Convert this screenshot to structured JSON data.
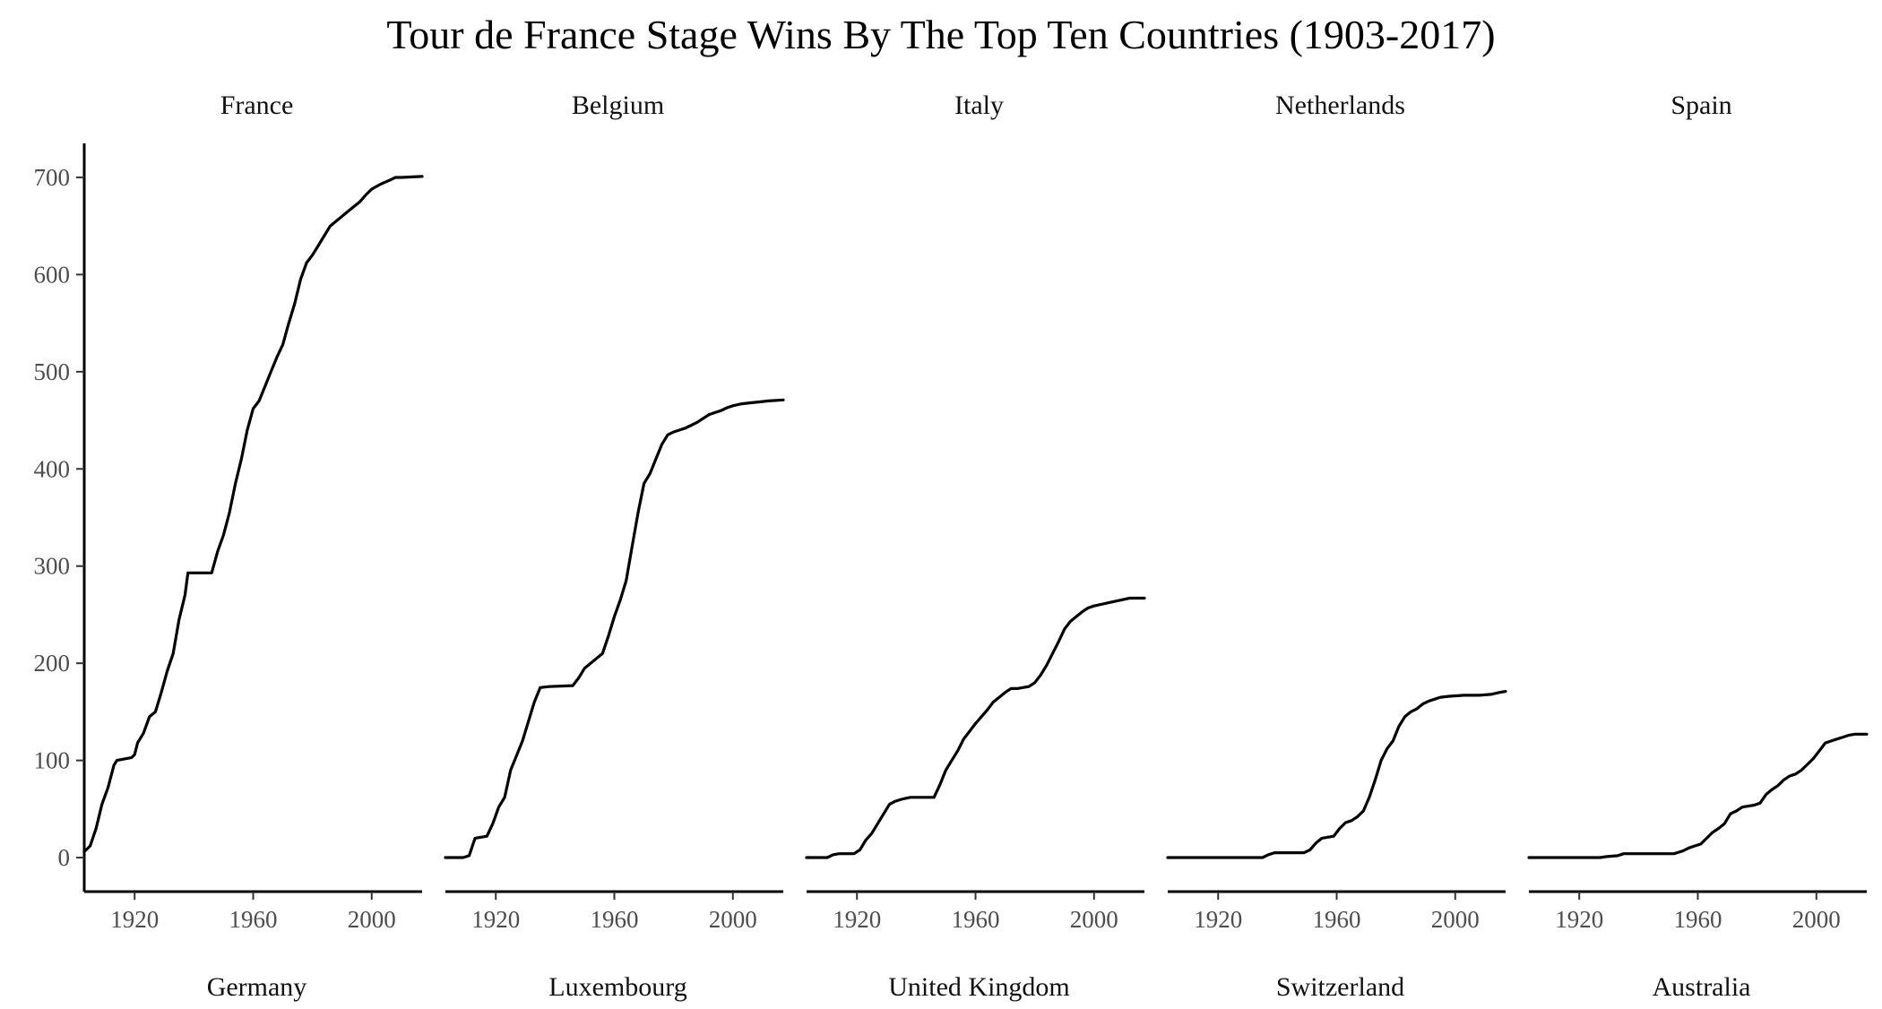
{
  "chart_data": {
    "type": "line",
    "title": "Tour de France Stage Wins By The Top Ten Countries (1903-2017)",
    "xlabel": "",
    "ylabel": "",
    "xlim": [
      1903,
      2017
    ],
    "ylim": [
      -35,
      735
    ],
    "x_ticks": [
      1920,
      1960,
      2000
    ],
    "y_ticks": [
      0,
      100,
      200,
      300,
      400,
      500,
      600,
      700
    ],
    "grid": false,
    "legend": "none",
    "line_color": "#000000",
    "panels": [
      {
        "name": "France",
        "points": [
          [
            1903,
            6
          ],
          [
            1905,
            12
          ],
          [
            1907,
            30
          ],
          [
            1909,
            55
          ],
          [
            1911,
            72
          ],
          [
            1913,
            95
          ],
          [
            1914,
            100
          ],
          [
            1919,
            103
          ],
          [
            1920,
            106
          ],
          [
            1921,
            118
          ],
          [
            1923,
            128
          ],
          [
            1925,
            145
          ],
          [
            1927,
            150
          ],
          [
            1929,
            170
          ],
          [
            1931,
            192
          ],
          [
            1933,
            210
          ],
          [
            1935,
            245
          ],
          [
            1937,
            270
          ],
          [
            1938,
            293
          ],
          [
            1946,
            293
          ],
          [
            1948,
            315
          ],
          [
            1950,
            332
          ],
          [
            1952,
            355
          ],
          [
            1954,
            385
          ],
          [
            1956,
            410
          ],
          [
            1958,
            440
          ],
          [
            1960,
            462
          ],
          [
            1962,
            470
          ],
          [
            1964,
            485
          ],
          [
            1966,
            500
          ],
          [
            1968,
            515
          ],
          [
            1970,
            528
          ],
          [
            1972,
            550
          ],
          [
            1974,
            570
          ],
          [
            1976,
            595
          ],
          [
            1978,
            612
          ],
          [
            1980,
            620
          ],
          [
            1982,
            630
          ],
          [
            1984,
            640
          ],
          [
            1986,
            650
          ],
          [
            1988,
            655
          ],
          [
            1990,
            660
          ],
          [
            1992,
            665
          ],
          [
            1994,
            670
          ],
          [
            1996,
            675
          ],
          [
            1998,
            682
          ],
          [
            2000,
            688
          ],
          [
            2003,
            693
          ],
          [
            2006,
            697
          ],
          [
            2008,
            700
          ],
          [
            2010,
            700
          ],
          [
            2017,
            701
          ]
        ]
      },
      {
        "name": "Belgium",
        "points": [
          [
            1903,
            0
          ],
          [
            1909,
            0
          ],
          [
            1911,
            2
          ],
          [
            1913,
            20
          ],
          [
            1917,
            22
          ],
          [
            1919,
            35
          ],
          [
            1921,
            52
          ],
          [
            1923,
            62
          ],
          [
            1925,
            90
          ],
          [
            1927,
            105
          ],
          [
            1929,
            120
          ],
          [
            1931,
            140
          ],
          [
            1933,
            160
          ],
          [
            1935,
            175
          ],
          [
            1938,
            176
          ],
          [
            1946,
            177
          ],
          [
            1948,
            185
          ],
          [
            1950,
            195
          ],
          [
            1952,
            200
          ],
          [
            1954,
            205
          ],
          [
            1956,
            210
          ],
          [
            1958,
            228
          ],
          [
            1960,
            248
          ],
          [
            1962,
            265
          ],
          [
            1964,
            285
          ],
          [
            1966,
            320
          ],
          [
            1968,
            355
          ],
          [
            1970,
            385
          ],
          [
            1972,
            395
          ],
          [
            1974,
            410
          ],
          [
            1976,
            425
          ],
          [
            1978,
            435
          ],
          [
            1980,
            438
          ],
          [
            1982,
            440
          ],
          [
            1984,
            442
          ],
          [
            1986,
            445
          ],
          [
            1988,
            448
          ],
          [
            1990,
            452
          ],
          [
            1992,
            456
          ],
          [
            1994,
            458
          ],
          [
            1996,
            460
          ],
          [
            1998,
            463
          ],
          [
            2000,
            465
          ],
          [
            2003,
            467
          ],
          [
            2006,
            468
          ],
          [
            2009,
            469
          ],
          [
            2012,
            470
          ],
          [
            2017,
            471
          ]
        ]
      },
      {
        "name": "Italy",
        "points": [
          [
            1903,
            0
          ],
          [
            1910,
            0
          ],
          [
            1912,
            3
          ],
          [
            1914,
            4
          ],
          [
            1919,
            4
          ],
          [
            1921,
            8
          ],
          [
            1923,
            18
          ],
          [
            1925,
            25
          ],
          [
            1927,
            35
          ],
          [
            1929,
            45
          ],
          [
            1931,
            55
          ],
          [
            1933,
            58
          ],
          [
            1935,
            60
          ],
          [
            1938,
            62
          ],
          [
            1946,
            62
          ],
          [
            1948,
            75
          ],
          [
            1950,
            90
          ],
          [
            1952,
            100
          ],
          [
            1954,
            110
          ],
          [
            1956,
            122
          ],
          [
            1958,
            130
          ],
          [
            1960,
            138
          ],
          [
            1962,
            145
          ],
          [
            1964,
            152
          ],
          [
            1966,
            160
          ],
          [
            1968,
            165
          ],
          [
            1970,
            170
          ],
          [
            1972,
            174
          ],
          [
            1974,
            174
          ],
          [
            1976,
            175
          ],
          [
            1978,
            176
          ],
          [
            1980,
            180
          ],
          [
            1982,
            188
          ],
          [
            1984,
            198
          ],
          [
            1986,
            210
          ],
          [
            1988,
            222
          ],
          [
            1990,
            235
          ],
          [
            1992,
            243
          ],
          [
            1994,
            248
          ],
          [
            1996,
            253
          ],
          [
            1998,
            257
          ],
          [
            2000,
            259
          ],
          [
            2003,
            261
          ],
          [
            2006,
            263
          ],
          [
            2009,
            265
          ],
          [
            2012,
            267
          ],
          [
            2017,
            267
          ]
        ]
      },
      {
        "name": "Netherlands",
        "points": [
          [
            1903,
            0
          ],
          [
            1935,
            0
          ],
          [
            1937,
            3
          ],
          [
            1939,
            5
          ],
          [
            1949,
            5
          ],
          [
            1951,
            8
          ],
          [
            1953,
            15
          ],
          [
            1955,
            20
          ],
          [
            1957,
            21
          ],
          [
            1959,
            22
          ],
          [
            1961,
            30
          ],
          [
            1963,
            36
          ],
          [
            1965,
            38
          ],
          [
            1967,
            42
          ],
          [
            1969,
            48
          ],
          [
            1971,
            62
          ],
          [
            1973,
            80
          ],
          [
            1975,
            100
          ],
          [
            1977,
            112
          ],
          [
            1979,
            120
          ],
          [
            1981,
            135
          ],
          [
            1983,
            145
          ],
          [
            1985,
            150
          ],
          [
            1987,
            153
          ],
          [
            1989,
            158
          ],
          [
            1991,
            161
          ],
          [
            1993,
            163
          ],
          [
            1995,
            165
          ],
          [
            1998,
            166
          ],
          [
            2003,
            167
          ],
          [
            2008,
            167
          ],
          [
            2012,
            168
          ],
          [
            2015,
            170
          ],
          [
            2017,
            171
          ]
        ]
      },
      {
        "name": "Spain",
        "points": [
          [
            1903,
            0
          ],
          [
            1927,
            0
          ],
          [
            1929,
            1
          ],
          [
            1933,
            2
          ],
          [
            1935,
            4
          ],
          [
            1952,
            4
          ],
          [
            1955,
            7
          ],
          [
            1957,
            10
          ],
          [
            1959,
            12
          ],
          [
            1961,
            14
          ],
          [
            1963,
            20
          ],
          [
            1965,
            26
          ],
          [
            1967,
            30
          ],
          [
            1969,
            35
          ],
          [
            1971,
            45
          ],
          [
            1973,
            48
          ],
          [
            1975,
            52
          ],
          [
            1977,
            53
          ],
          [
            1979,
            54
          ],
          [
            1981,
            56
          ],
          [
            1983,
            65
          ],
          [
            1985,
            70
          ],
          [
            1987,
            74
          ],
          [
            1989,
            80
          ],
          [
            1991,
            84
          ],
          [
            1993,
            86
          ],
          [
            1995,
            90
          ],
          [
            1997,
            96
          ],
          [
            1999,
            102
          ],
          [
            2001,
            110
          ],
          [
            2003,
            118
          ],
          [
            2005,
            120
          ],
          [
            2007,
            122
          ],
          [
            2009,
            124
          ],
          [
            2011,
            126
          ],
          [
            2013,
            127
          ],
          [
            2017,
            127
          ]
        ]
      }
    ],
    "bottom_strip_labels": [
      "Germany",
      "Luxembourg",
      "United Kingdom",
      "Switzerland",
      "Australia"
    ]
  }
}
